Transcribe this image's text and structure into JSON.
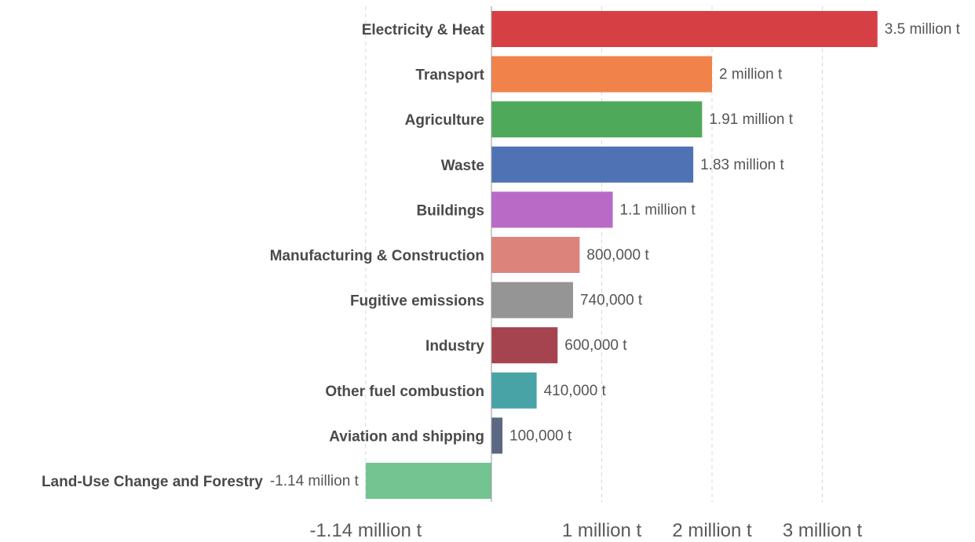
{
  "chart_data": {
    "type": "bar",
    "orientation": "horizontal",
    "title": "",
    "xlabel": "",
    "ylabel": "",
    "unit": "t",
    "xlim": [
      -1140000,
      3500000
    ],
    "grid": true,
    "legend": "none",
    "categories": [
      "Electricity & Heat",
      "Transport",
      "Agriculture",
      "Waste",
      "Buildings",
      "Manufacturing & Construction",
      "Fugitive emissions",
      "Industry",
      "Other fuel combustion",
      "Aviation and shipping",
      "Land-Use Change and Forestry"
    ],
    "values": [
      3500000,
      2000000,
      1910000,
      1830000,
      1100000,
      800000,
      740000,
      600000,
      410000,
      100000,
      -1140000
    ],
    "value_labels": [
      "3.5 million t",
      "2 million t",
      "1.91 million t",
      "1.83 million t",
      "1.1 million t",
      "800,000 t",
      "740,000 t",
      "600,000 t",
      "410,000 t",
      "100,000 t",
      "-1.14 million t"
    ],
    "colors": [
      "#d64045",
      "#f0824a",
      "#4fa95a",
      "#4f72b4",
      "#b96ac6",
      "#dc847b",
      "#959595",
      "#a5434e",
      "#48a3a7",
      "#5b6883",
      "#74c492"
    ],
    "x_ticks": [
      {
        "value": -1140000,
        "label": "-1.14 million t"
      },
      {
        "value": 1000000,
        "label": "1 million t"
      },
      {
        "value": 2000000,
        "label": "2 million t"
      },
      {
        "value": 3000000,
        "label": "3 million t"
      }
    ]
  }
}
